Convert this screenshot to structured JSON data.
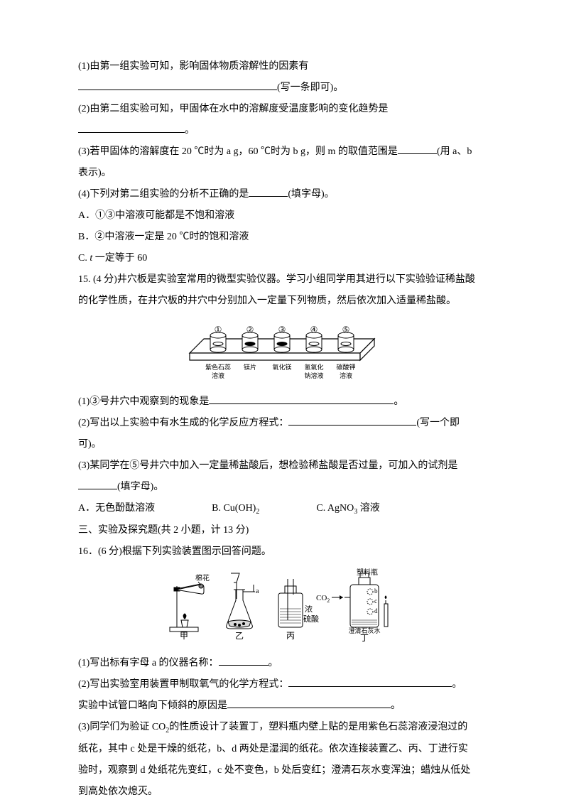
{
  "q1": {
    "p1a": "(1)由第一组实验可知，影响固体物质溶解性的因素有",
    "p1b": "(写一条即可)。",
    "p2a": "(2)由第二组实验可知，甲固体在水中的溶解度受温度影响的变化趋势是",
    "p2b": "。",
    "p3a": "(3)若甲固体的溶解度在 20 ℃时为 a g，60 ℃时为 b g，则 m 的取值范围是",
    "p3b": "(用 a、b",
    "p3c": "表示)。",
    "p4a": "(4)下列对第二组实验的分析不正确的是",
    "p4b": "(填字母)。",
    "optA": "A．①③中溶液可能都是不饱和溶液",
    "optB": "B．②中溶液一定是 20 ℃时的饱和溶液",
    "optC_pre": "C. ",
    "optC_t": "t",
    "optC_post": " 一定等于 60"
  },
  "q15": {
    "stem1": "15. (4 分)井穴板是实验室常用的微型实验仪器。学习小组同学用其进行以下实验验证稀盐酸",
    "stem2": "的化学性质，在井穴板的井穴中分别加入一定量下列物质，然后依次加入适量稀盐酸。",
    "fig": {
      "nums": [
        "①",
        "②",
        "③",
        "④",
        "⑤"
      ],
      "labels1": [
        "紫色石蕊",
        "镁片",
        "氧化镁",
        "氢氧化",
        "碳酸钾"
      ],
      "labels2": [
        "溶液",
        "",
        "",
        "钠溶液",
        "溶液"
      ]
    },
    "p1a": "(1)③号井穴中观察到的现象是",
    "p1b": "。",
    "p2a": "(2)写出以上实验中有水生成的化学反应方程式：",
    "p2b": "(写一个即",
    "p2c": "可)。",
    "p3a": "(3)某同学在⑤号井穴中加入一定量稀盐酸后，想检验稀盐酸是否过量，可加入的试剂是",
    "p3b": "(填字母)。",
    "optA": "A．无色酚酞溶液",
    "optB_pre": "B. Cu(OH)",
    "optB_sub": "2",
    "optC_pre": "C. AgNO",
    "optC_sub": "3",
    "optC_post": " 溶液"
  },
  "section3": "三、实验及探究题(共 2 小题，计 13 分)",
  "q16": {
    "stem": "16．(6 分)根据下列实验装置图示回答问题。",
    "fig": {
      "cap1": "甲",
      "cap2": "乙",
      "cap3": "丙",
      "cap4": "丁",
      "label_cotton": "棉花",
      "label_a": "a",
      "label_acid1": "浓",
      "label_acid2": "硫酸",
      "label_co2": "CO",
      "label_plastic": "塑料瓶",
      "label_b": "b",
      "label_c": "c",
      "label_d": "d",
      "label_lime": "澄清石灰水"
    },
    "p1a": "(1)写出标有字母 a 的仪器名称：",
    "p1b": "。",
    "p2a": "(2)写出实验室用装置甲制取氧气的化学方程式：",
    "p2b": "。",
    "p2c": "实验中试管口略向下倾斜的原因是",
    "p2d": "。",
    "p3a": "(3)同学们为验证 CO",
    "p3a_sub": "2",
    "p3a2": "的性质设计了装置丁，塑料瓶内壁上贴的是用紫色石蕊溶液浸泡过的",
    "p3b": "纸花，其中 c 处是干燥的纸花，b、d 两处是湿润的纸花。依次连接装置乙、丙、丁进行实",
    "p3c": "验时，观察到 d 处纸花先变红，c 处不变色，b 处后变红；澄清石灰水变浑浊；蜡烛从低处",
    "p3d": "到高处依次熄灭。"
  },
  "colors": {
    "text": "#000000",
    "bg": "#ffffff",
    "line": "#000000"
  }
}
